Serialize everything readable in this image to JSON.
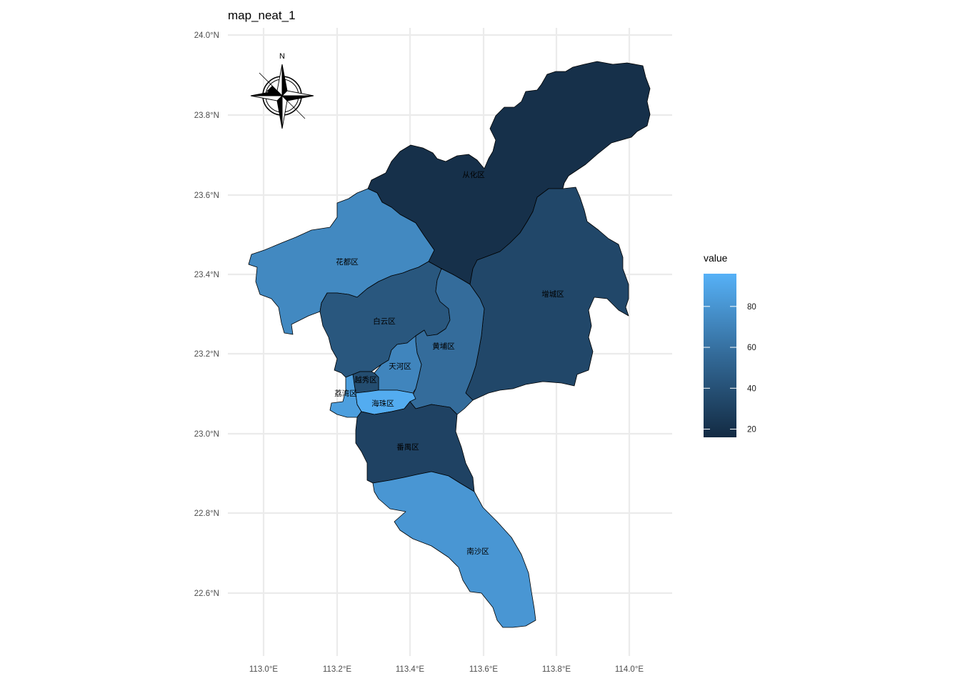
{
  "title": "map_neat_1",
  "chart_data": {
    "type": "choropleth",
    "title": "map_neat_1",
    "x_ticks": [
      "113.0°E",
      "113.2°E",
      "113.4°E",
      "113.6°E",
      "113.8°E",
      "114.0°E"
    ],
    "y_ticks": [
      "24.0°N",
      "23.8°N",
      "23.6°N",
      "23.4°N",
      "23.2°N",
      "23.0°N",
      "22.8°N",
      "22.6°N"
    ],
    "xlim": [
      112.9,
      114.12
    ],
    "ylim": [
      22.44,
      24.02
    ],
    "grid": true,
    "regions": [
      {
        "name": "从化区",
        "value": 19
      },
      {
        "name": "增城区",
        "value": 33
      },
      {
        "name": "花都区",
        "value": 72
      },
      {
        "name": "白云区",
        "value": 42
      },
      {
        "name": "黄埔区",
        "value": 55
      },
      {
        "name": "天河区",
        "value": 70
      },
      {
        "name": "越秀区",
        "value": 36
      },
      {
        "name": "荔湾区",
        "value": 85
      },
      {
        "name": "海珠区",
        "value": 93
      },
      {
        "name": "番禺区",
        "value": 30
      },
      {
        "name": "南沙区",
        "value": 80
      }
    ],
    "legend": {
      "title": "value",
      "position": "right",
      "ticks": [
        "20",
        "40",
        "60",
        "80"
      ],
      "min": 16,
      "max": 96,
      "colors": {
        "low": "#132B43",
        "high": "#56B1F7"
      }
    },
    "north_arrow": {
      "label": "N",
      "position": "top-left"
    }
  }
}
